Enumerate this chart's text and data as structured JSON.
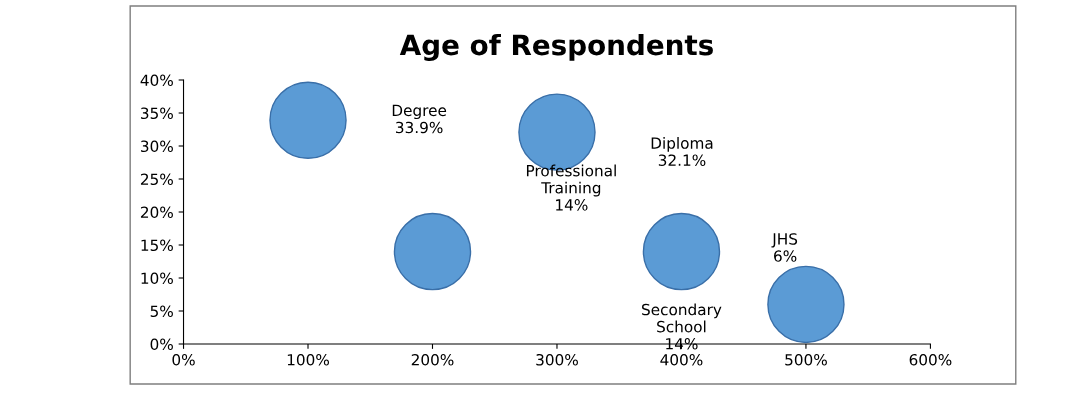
{
  "chart_data": {
    "type": "bubble",
    "title": "Age of Respondents",
    "x": [
      100,
      200,
      300,
      400,
      500
    ],
    "values": [
      33.9,
      14,
      32.1,
      14,
      6
    ],
    "sizes": [
      1,
      1,
      1,
      1,
      1
    ],
    "color": "#5b9bd5",
    "xlim": [
      0,
      600
    ],
    "xticks": [
      {
        "value": 0,
        "label": "0%"
      },
      {
        "value": 100,
        "label": "100%"
      },
      {
        "value": 200,
        "label": "200%"
      },
      {
        "value": 300,
        "label": "300%"
      },
      {
        "value": 400,
        "label": "400%"
      },
      {
        "value": 500,
        "label": "500%"
      },
      {
        "value": 600,
        "label": "600%"
      }
    ],
    "ylim": [
      0,
      40
    ],
    "yticks": [
      {
        "value": 0,
        "label": "0%"
      },
      {
        "value": 5,
        "label": "5%"
      },
      {
        "value": 10,
        "label": "10%"
      },
      {
        "value": 15,
        "label": "15%"
      },
      {
        "value": 20,
        "label": "20%"
      },
      {
        "value": 25,
        "label": "25%"
      },
      {
        "value": 30,
        "label": "30%"
      },
      {
        "value": 35,
        "label": "35%"
      },
      {
        "value": 40,
        "label": "40%"
      }
    ],
    "grid": false,
    "annotations": [
      "Degree\n33.9%",
      "Professional\nTraining\n14%",
      "Diploma\n32.1%",
      "Secondary\nSchool\n14%",
      "JHS\n6%"
    ]
  }
}
